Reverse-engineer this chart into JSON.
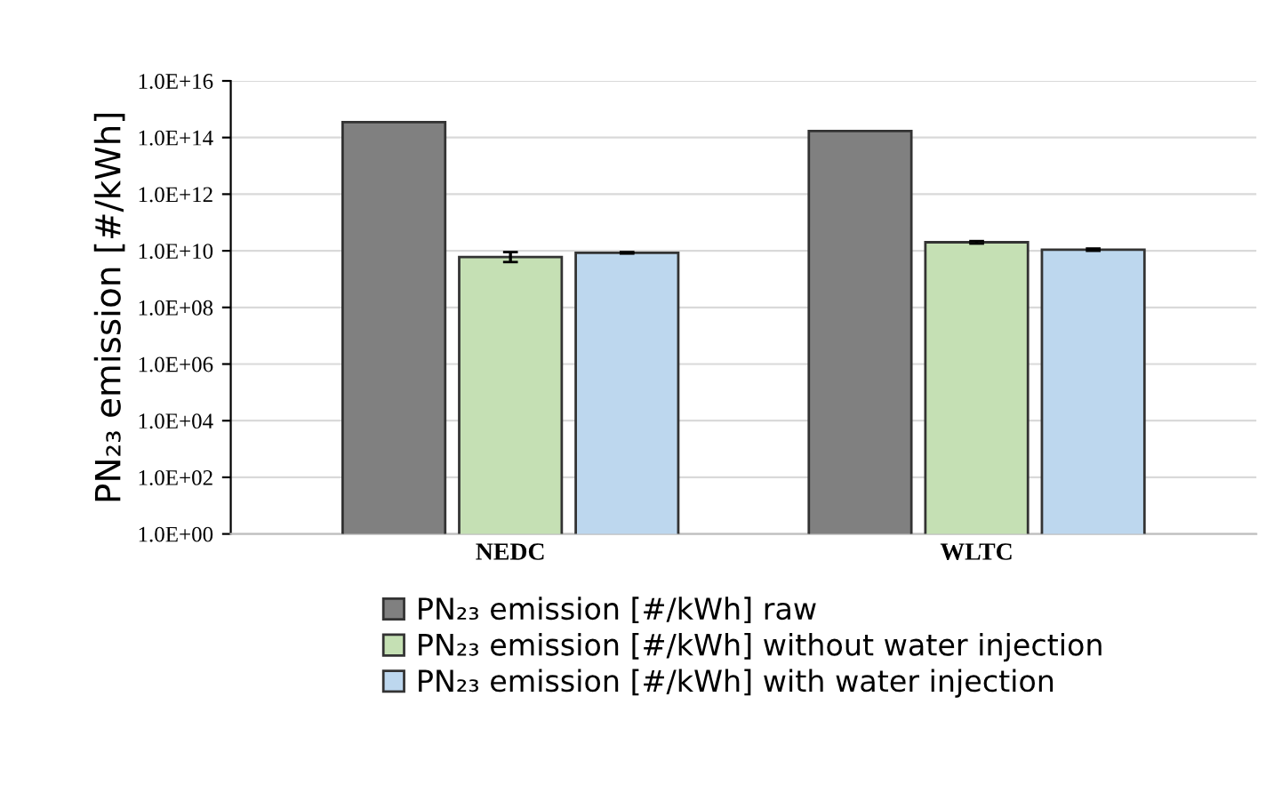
{
  "chart_data": {
    "type": "bar",
    "categories": [
      "NEDC",
      "WLTC"
    ],
    "ylabel": "PN₂₃ emission [#/kWh]",
    "log": true,
    "ylim": [
      1,
      1e+16
    ],
    "yticks": [
      {
        "value": 1,
        "label": "1.0E+00"
      },
      {
        "value": 100,
        "label": "1.0E+02"
      },
      {
        "value": 10000,
        "label": "1.0E+04"
      },
      {
        "value": 1000000,
        "label": "1.0E+06"
      },
      {
        "value": 100000000,
        "label": "1.0E+08"
      },
      {
        "value": 10000000000,
        "label": "1.0E+10"
      },
      {
        "value": 1000000000000,
        "label": "1.0E+12"
      },
      {
        "value": 100000000000000,
        "label": "1.0E+14"
      },
      {
        "value": 1e+16,
        "label": "1.0E+16"
      }
    ],
    "grid": "y",
    "legend": "bottom",
    "series": [
      {
        "name": "PN₂₃ emission [#/kWh] raw",
        "color": "#808080",
        "values": [
          350000000000000.0,
          170000000000000.0
        ]
      },
      {
        "name": "PN₂₃ emission [#/kWh] without water injection",
        "color": "#c5e0b4",
        "values": [
          6000000000.0,
          20000000000.0
        ],
        "errors": [
          [
            4000000000.0,
            9000000000.0
          ],
          [
            18000000000.0,
            22000000000.0
          ]
        ]
      },
      {
        "name": "PN₂₃ emission [#/kWh] with water injection",
        "color": "#bdd7ee",
        "values": [
          8500000000.0,
          11000000000.0
        ],
        "errors": [
          [
            8000000000.0,
            9000000000.0
          ],
          [
            10000000000.0,
            12000000000.0
          ]
        ]
      }
    ]
  }
}
